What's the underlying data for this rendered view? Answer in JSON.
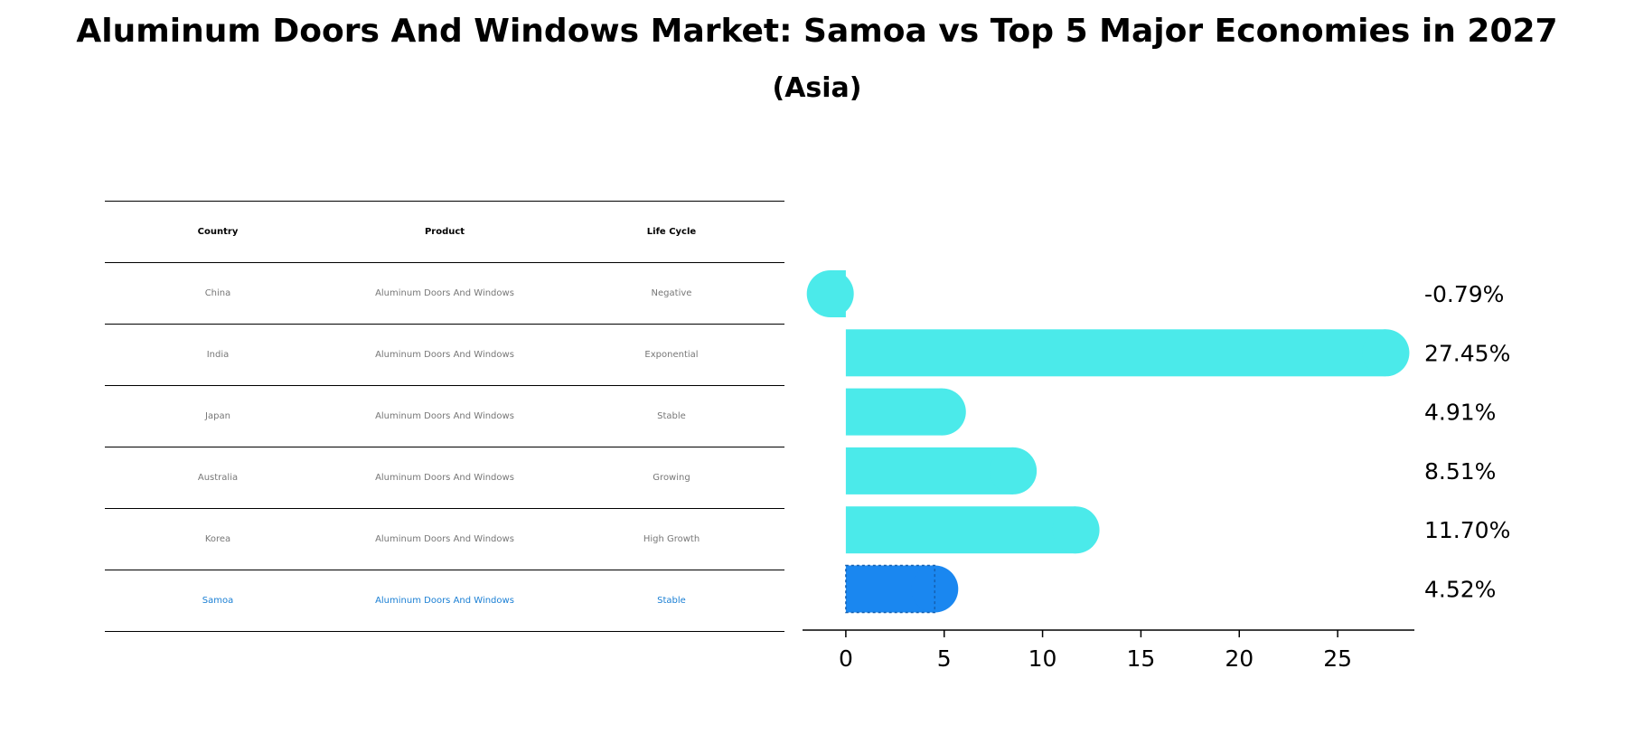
{
  "title": "Aluminum Doors And Windows Market: Samoa vs Top 5 Major Economies in 2027",
  "subtitle": "(Asia)",
  "table": {
    "headers": [
      "Country",
      "Product",
      "Life Cycle"
    ],
    "rows": [
      [
        "China",
        "Aluminum Doors And Windows",
        "Negative"
      ],
      [
        "India",
        "Aluminum Doors And Windows",
        "Exponential"
      ],
      [
        "Japan",
        "Aluminum Doors And Windows",
        "Stable"
      ],
      [
        "Australia",
        "Aluminum Doors And Windows",
        "Growing"
      ],
      [
        "Korea",
        "Aluminum Doors And Windows",
        "High Growth"
      ],
      [
        "Samoa",
        "Aluminum Doors And Windows",
        "Stable"
      ]
    ],
    "highlight_row": 5
  },
  "chart_data": {
    "type": "bar",
    "orientation": "horizontal",
    "categories": [
      "China",
      "India",
      "Japan",
      "Australia",
      "Korea",
      "Samoa"
    ],
    "values": [
      -0.79,
      27.45,
      4.91,
      8.51,
      11.7,
      4.52
    ],
    "value_labels": [
      "-0.79%",
      "27.45%",
      "4.91%",
      "8.51%",
      "11.70%",
      "4.52%"
    ],
    "xticks": [
      0,
      5,
      10,
      15,
      20,
      25
    ],
    "xlim": [
      -2.2,
      28.9
    ],
    "colors": {
      "default": "#4beaea",
      "highlight": "#1a87f0"
    },
    "highlight_index": 5,
    "grid": false
  }
}
